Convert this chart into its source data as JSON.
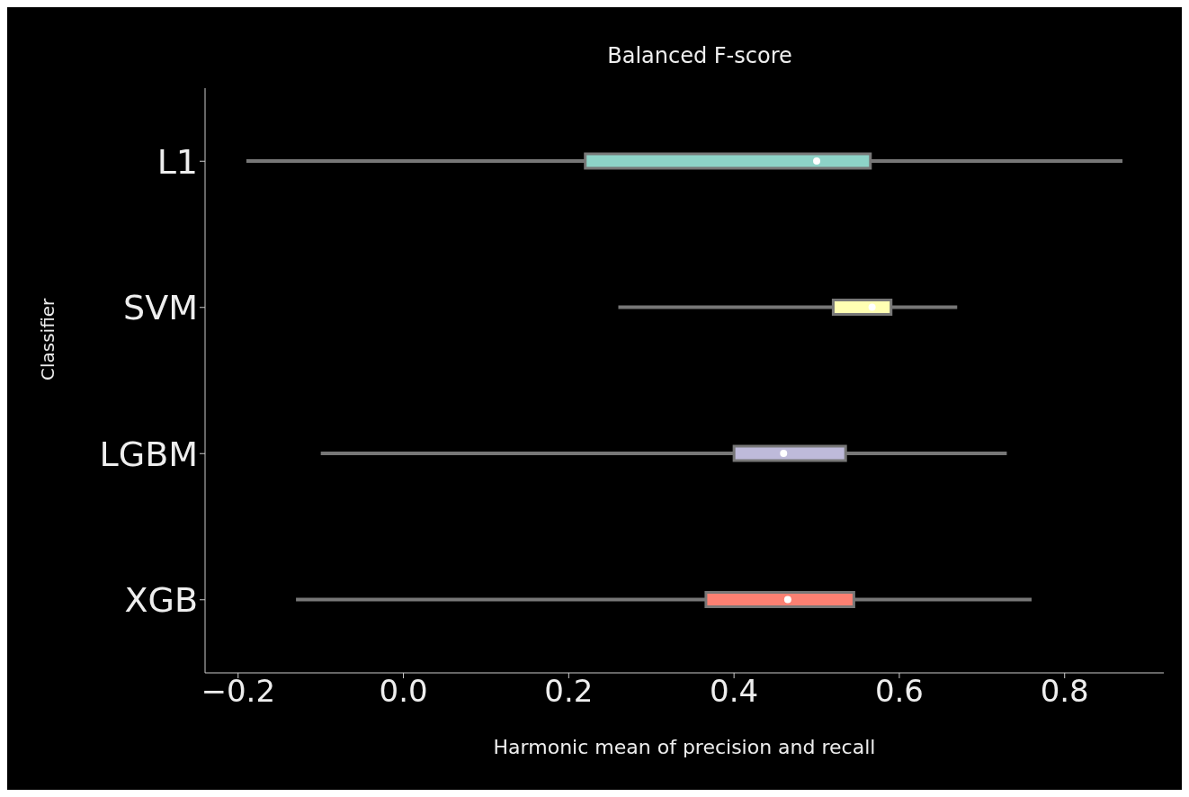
{
  "chart_data": {
    "type": "box",
    "orientation": "horizontal",
    "title": "Balanced F-score",
    "xlabel": "Harmonic mean of precision and recall",
    "ylabel": "Classifier",
    "categories": [
      "L1",
      "SVM",
      "LGBM",
      "XGB"
    ],
    "boxes": [
      {
        "low": -0.19,
        "q1": 0.22,
        "median": 0.5,
        "q3": 0.565,
        "high": 0.87
      },
      {
        "low": 0.26,
        "q1": 0.52,
        "median": 0.567,
        "q3": 0.59,
        "high": 0.67
      },
      {
        "low": -0.1,
        "q1": 0.4,
        "median": 0.46,
        "q3": 0.535,
        "high": 0.73
      },
      {
        "low": -0.13,
        "q1": 0.366,
        "median": 0.465,
        "q3": 0.545,
        "high": 0.76
      }
    ],
    "colors": [
      "#8dd3c7",
      "#ffffb3",
      "#bebada",
      "#fb8072"
    ],
    "xlim": [
      -0.24,
      0.92
    ],
    "xticks": [
      -0.2,
      {
        "value": 0,
        "label": "0.0"
      },
      0.2,
      0.4,
      0.6,
      0.8
    ]
  }
}
